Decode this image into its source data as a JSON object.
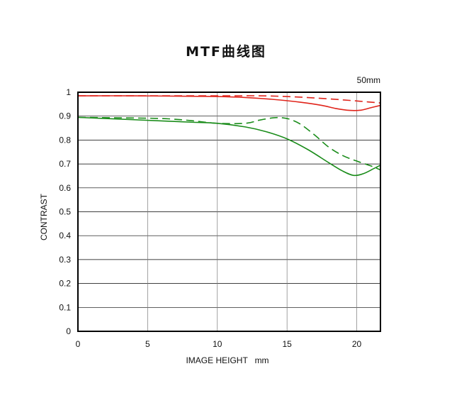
{
  "chart_data": {
    "type": "line",
    "title": "MTF曲线图",
    "subtitle": "50mm",
    "xlabel": "IMAGE HEIGHT   mm",
    "ylabel": "CONTRAST",
    "xlim": [
      0,
      21.7
    ],
    "ylim": [
      0,
      1
    ],
    "x_ticks": [
      0,
      5,
      10,
      15,
      20
    ],
    "y_ticks": [
      0,
      0.1,
      0.2,
      0.3,
      0.4,
      0.5,
      0.6,
      0.7,
      0.8,
      0.9,
      1
    ],
    "y_tick_labels": [
      "0",
      "0.1",
      "0.2",
      "0.3",
      "0.4",
      "0.5",
      "0.6",
      "0.7",
      "0.8",
      "0.9",
      "1"
    ],
    "grid": true,
    "series": [
      {
        "color": "#e0241b",
        "dash": "solid",
        "points": [
          [
            0,
            0.985
          ],
          [
            4,
            0.985
          ],
          [
            8,
            0.983
          ],
          [
            10,
            0.982
          ],
          [
            12,
            0.978
          ],
          [
            14,
            0.97
          ],
          [
            16,
            0.958
          ],
          [
            17.5,
            0.945
          ],
          [
            18.5,
            0.932
          ],
          [
            19.5,
            0.924
          ],
          [
            20.3,
            0.925
          ],
          [
            21,
            0.935
          ],
          [
            21.7,
            0.945
          ]
        ]
      },
      {
        "color": "#e0241b",
        "dash": "dashed",
        "points": [
          [
            0,
            0.985
          ],
          [
            5,
            0.985
          ],
          [
            10,
            0.985
          ],
          [
            13,
            0.985
          ],
          [
            15,
            0.982
          ],
          [
            17,
            0.976
          ],
          [
            19,
            0.968
          ],
          [
            20.5,
            0.961
          ],
          [
            21.7,
            0.955
          ]
        ]
      },
      {
        "color": "#1a8c1a",
        "dash": "solid",
        "points": [
          [
            0,
            0.895
          ],
          [
            2,
            0.89
          ],
          [
            4,
            0.885
          ],
          [
            6,
            0.88
          ],
          [
            8,
            0.875
          ],
          [
            10,
            0.87
          ],
          [
            12,
            0.855
          ],
          [
            13.5,
            0.835
          ],
          [
            15,
            0.805
          ],
          [
            16.5,
            0.76
          ],
          [
            18,
            0.705
          ],
          [
            19,
            0.67
          ],
          [
            19.8,
            0.652
          ],
          [
            20.5,
            0.66
          ],
          [
            21.2,
            0.68
          ],
          [
            21.7,
            0.695
          ]
        ]
      },
      {
        "color": "#1a8c1a",
        "dash": "dashed",
        "points": [
          [
            0,
            0.895
          ],
          [
            3,
            0.893
          ],
          [
            6,
            0.89
          ],
          [
            8,
            0.882
          ],
          [
            10,
            0.87
          ],
          [
            12,
            0.87
          ],
          [
            13,
            0.883
          ],
          [
            14,
            0.893
          ],
          [
            14.7,
            0.893
          ],
          [
            15.3,
            0.885
          ],
          [
            16,
            0.865
          ],
          [
            17,
            0.82
          ],
          [
            18,
            0.77
          ],
          [
            19,
            0.735
          ],
          [
            20,
            0.712
          ],
          [
            21,
            0.692
          ],
          [
            21.7,
            0.675
          ]
        ]
      }
    ]
  }
}
